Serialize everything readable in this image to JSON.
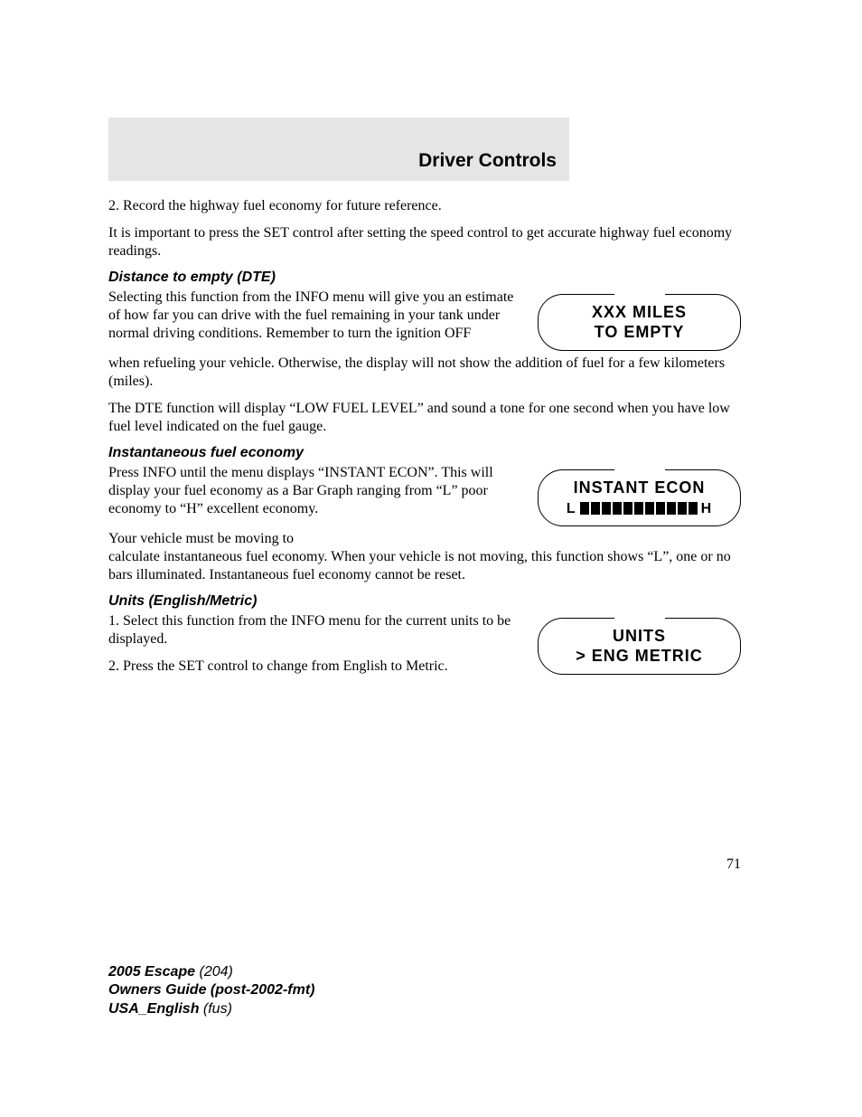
{
  "header": {
    "title": "Driver Controls"
  },
  "intro": {
    "step2": "2. Record the highway fuel economy for future reference.",
    "note": "It is important to press the SET control after setting the speed control to get accurate highway fuel economy readings."
  },
  "dte": {
    "heading": "Distance to empty (DTE)",
    "p1": "Selecting this function from the INFO menu will give you an estimate of how far you can drive with the fuel remaining in your tank under normal driving conditions. Remember to turn the ignition OFF",
    "p1_cont": "when refueling your vehicle. Otherwise, the display will not show the addition of fuel for a few kilometers (miles).",
    "p2": "The DTE function will display “LOW FUEL LEVEL” and sound a tone for one second when you have low fuel level indicated on the fuel gauge.",
    "display": {
      "line1": "XXX MILES",
      "line2": "TO EMPTY"
    }
  },
  "econ": {
    "heading": "Instantaneous fuel economy",
    "p1": "Press INFO until the menu displays “INSTANT ECON”. This will display your fuel economy as a Bar Graph ranging from “L” poor economy to “H” excellent economy.",
    "p2": "Your vehicle must be moving to",
    "p2_cont": "calculate instantaneous fuel economy. When your vehicle is not moving, this function shows “L”, one or no bars illuminated. Instantaneous fuel economy cannot be reset.",
    "display": {
      "line1": "INSTANT ECON",
      "low_label": "L",
      "high_label": "H",
      "bar_count": 11,
      "bar_color": "#000000"
    }
  },
  "units": {
    "heading": "Units (English/Metric)",
    "p1": "1. Select this function from the INFO menu for the current units to be displayed.",
    "p2": "2. Press the SET control to change from English to Metric.",
    "display": {
      "line1": "UNITS",
      "line2": "> ENG  METRIC"
    }
  },
  "page_number": "71",
  "footer": {
    "l1a": "2005 Escape ",
    "l1b": "(204)",
    "l2": "Owners Guide (post-2002-fmt)",
    "l3a": "USA_English ",
    "l3b": "(fus)"
  },
  "style": {
    "page_bg": "#ffffff",
    "band_bg": "#e5e5e5",
    "text_color": "#000000",
    "body_font_size": 16,
    "header_font_size": 21
  }
}
